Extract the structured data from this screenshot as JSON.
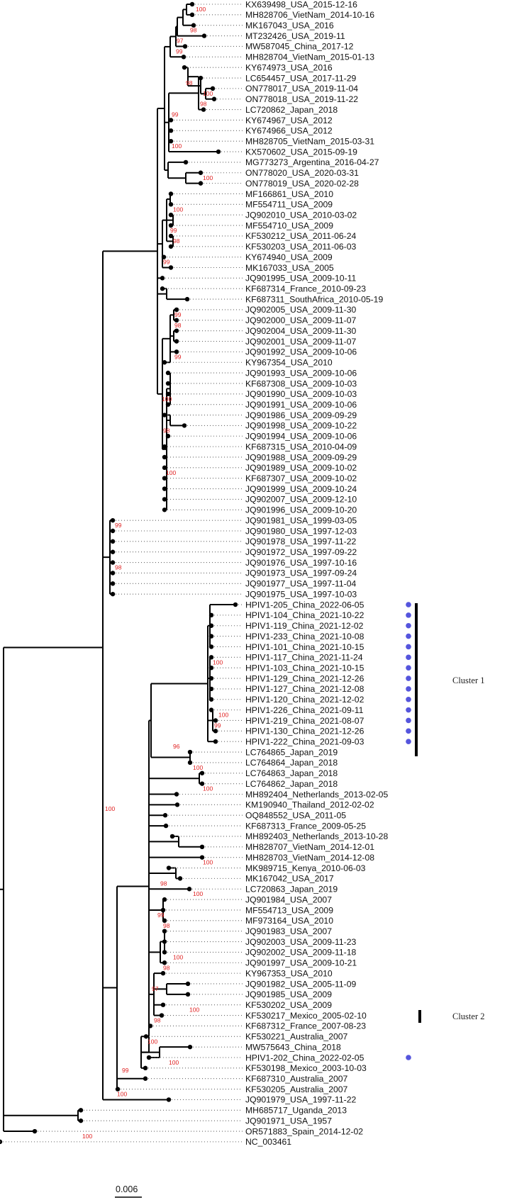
{
  "tree": {
    "taxa": [
      "KX639498_USA_2015-12-16",
      "MH828706_VietNam_2014-10-16",
      "MK167043_USA_2016",
      "MT232426_USA_2019-11",
      "MW587045_China_2017-12",
      "MH828704_VietNam_2015-01-13",
      "KY674973_USA_2016",
      "LC654457_USA_2017-11-29",
      "ON778017_USA_2019-11-04",
      "ON778018_USA_2019-11-22",
      "LC720862_Japan_2018",
      "KY674967_USA_2012",
      "KY674966_USA_2012",
      "MH828705_VietNam_2015-03-31",
      "KX570602_USA_2015-09-19",
      "MG773273_Argentina_2016-04-27",
      "ON778020_USA_2020-03-31",
      "ON778019_USA_2020-02-28",
      "MF166861_USA_2010",
      "MF554711_USA_2009",
      "JQ902010_USA_2010-03-02",
      "MF554710_USA_2009",
      "KF530212_USA_2011-06-24",
      "KF530203_USA_2011-06-03",
      "KY674940_USA_2009",
      "MK167033_USA_2005",
      "JQ901995_USA_2009-10-11",
      "KF687314_France_2010-09-23",
      "KF687311_SouthAfrica_2010-05-19",
      "JQ902005_USA_2009-11-30",
      "JQ902000_USA_2009-11-07",
      "JQ902004_USA_2009-11-30",
      "JQ902001_USA_2009-11-07",
      "JQ901992_USA_2009-10-06",
      "KY967354_USA_2010",
      "JQ901993_USA_2009-10-06",
      "KF687308_USA_2009-10-03",
      "JQ901990_USA_2009-10-03",
      "JQ901991_USA_2009-10-06",
      "JQ901986_USA_2009-09-29",
      "JQ901998_USA_2009-10-22",
      "JQ901994_USA_2009-10-06",
      "KF687315_USA_2010-04-09",
      "JQ901988_USA_2009-09-29",
      "JQ901989_USA_2009-10-02",
      "KF687307_USA_2009-10-02",
      "JQ901999_USA_2009-10-24",
      "JQ902007_USA_2009-12-10",
      "JQ901996_USA_2009-10-20",
      "JQ901981_USA_1999-03-05",
      "JQ901980_USA_1997-12-03",
      "JQ901978_USA_1997-11-22",
      "JQ901972_USA_1997-09-22",
      "JQ901976_USA_1997-10-16",
      "JQ901973_USA_1997-09-24",
      "JQ901977_USA_1997-11-04",
      "JQ901975_USA_1997-10-03",
      "HPIV1-205_China_2022-06-05",
      "HPIV1-104_China_2021-10-22",
      "HPIV1-119_China_2021-12-02",
      "HPIV1-233_China_2021-10-08",
      "HPIV1-101_China_2021-10-15",
      "HPIV1-117_China_2021-11-24",
      "HPIV1-103_China_2021-10-15",
      "HPIV1-129_China_2021-12-26",
      "HPIV1-127_China_2021-12-08",
      "HPIV1-120_China_2021-12-02",
      "HPIV1-226_China_2021-09-11",
      "HPIV1-219_China_2021-08-07",
      "HPIV1-130_China_2021-12-26",
      "HPIV1-222_China_2021-09-03",
      "LC764865_Japan_2019",
      "LC764864_Japan_2018",
      "LC764863_Japan_2018",
      "LC764862_Japan_2018",
      "MH892404_Netherlands_2013-02-05",
      "KM190940_Thailand_2012-02-02",
      "OQ848552_USA_2011-05",
      "KF687313_France_2009-05-25",
      "MH892403_Netherlands_2013-10-28",
      "MH828707_VietNam_2014-12-01",
      "MH828703_VietNam_2014-12-08",
      "MK989715_Kenya_2010-06-03",
      "MK167042_USA_2017",
      "LC720863_Japan_2019",
      "JQ901984_USA_2007",
      "MF554713_USA_2009",
      "MF973164_USA_2010",
      "JQ901983_USA_2007",
      "JQ902003_USA_2009-11-23",
      "JQ902002_USA_2009-11-18",
      "JQ901997_USA_2009-10-21",
      "KY967353_USA_2010",
      "JQ901982_USA_2005-11-09",
      "JQ901985_USA_2009",
      "KF530202_USA_2009",
      "KF530217_Mexico_2005-02-10",
      "KF687312_France_2007-08-23",
      "KF530221_Australia_2007",
      "MW575643_China_2018",
      "HPIV1-202_China_2022-02-05",
      "KF530198_Mexico_2003-10-03",
      "KF687310_Australia_2007",
      "KF530205_Australia_2007",
      "JQ901979_USA_1997-11-22",
      "MH685717_Uganda_2013",
      "JQ901971_USA_1957",
      "OR571883_Spain_2014-12-02",
      "NC_003461"
    ],
    "marked_taxa": [
      "HPIV1-205_China_2022-06-05",
      "HPIV1-104_China_2021-10-22",
      "HPIV1-119_China_2021-12-02",
      "HPIV1-233_China_2021-10-08",
      "HPIV1-101_China_2021-10-15",
      "HPIV1-117_China_2021-11-24",
      "HPIV1-103_China_2021-10-15",
      "HPIV1-129_China_2021-12-26",
      "HPIV1-127_China_2021-12-08",
      "HPIV1-120_China_2021-12-02",
      "HPIV1-226_China_2021-09-11",
      "HPIV1-219_China_2021-08-07",
      "HPIV1-130_China_2021-12-26",
      "HPIV1-222_China_2021-09-03",
      "HPIV1-202_China_2022-02-05"
    ],
    "bootstrap_labels": [
      {
        "value": "100",
        "after": "KX639498_USA_2015-12-16"
      },
      {
        "value": "98",
        "after": "MK167043_USA_2016"
      },
      {
        "value": "97",
        "after": "MT232426_USA_2019-11"
      },
      {
        "value": "99",
        "after": "MW587045_China_2017-12"
      },
      {
        "value": "98",
        "after": "LC654457_USA_2017-11-29"
      },
      {
        "value": "100",
        "after": "ON778017_USA_2019-11-04"
      },
      {
        "value": "98",
        "after": "ON778018_USA_2019-11-22"
      },
      {
        "value": "99",
        "after": "LC720862_Japan_2018"
      },
      {
        "value": "100",
        "after": "MH828705_VietNam_2015-03-31"
      },
      {
        "value": "100",
        "after": "ON778020_USA_2020-03-31"
      },
      {
        "value": "100",
        "after": "MF554711_USA_2009"
      },
      {
        "value": "99",
        "after": "MF554710_USA_2009"
      },
      {
        "value": "98",
        "after": "KF530212_USA_2011-06-24"
      },
      {
        "value": "99",
        "after": "KY674940_USA_2009"
      },
      {
        "value": "99",
        "after": "JQ902005_USA_2009-11-30"
      },
      {
        "value": "98",
        "after": "JQ902000_USA_2009-11-07"
      },
      {
        "value": "99",
        "after": "JQ901992_USA_2009-10-06"
      },
      {
        "value": "100",
        "after": "JQ901990_USA_2009-10-03"
      },
      {
        "value": "98",
        "after": "JQ901998_USA_2009-10-22"
      },
      {
        "value": "100",
        "after": "JQ901989_USA_2009-10-02"
      },
      {
        "value": "99",
        "after": "JQ901981_USA_1999-03-05"
      },
      {
        "value": "98",
        "after": "JQ901976_USA_1997-10-16"
      },
      {
        "value": "100",
        "after": "HPIV1-117_China_2021-11-24"
      },
      {
        "value": "100",
        "after": "HPIV1-226_China_2021-09-11"
      },
      {
        "value": "99",
        "after": "HPIV1-219_China_2021-08-07"
      },
      {
        "value": "96",
        "after": "HPIV1-222_China_2021-09-03"
      },
      {
        "value": "100",
        "after": "LC764864_Japan_2018"
      },
      {
        "value": "100",
        "after": "LC764862_Japan_2018"
      },
      {
        "value": "100",
        "after": "MH828703_VietNam_2014-12-08"
      },
      {
        "value": "98",
        "after": "MK167042_USA_2017"
      },
      {
        "value": "100",
        "after": "LC720863_Japan_2019"
      },
      {
        "value": "99",
        "after": "MF554713_USA_2009"
      },
      {
        "value": "98",
        "after": "MF973164_USA_2010"
      },
      {
        "value": "100",
        "after": "JQ902002_USA_2009-11-18"
      },
      {
        "value": "98",
        "after": "JQ901997_USA_2009-10-21"
      },
      {
        "value": "97",
        "after": "JQ901982_USA_2005-11-09"
      },
      {
        "value": "100",
        "after": "KF530202_USA_2009"
      },
      {
        "value": "98",
        "after": "KF530217_Mexico_2005-02-10"
      },
      {
        "value": "100",
        "after": "KF530221_Australia_2007"
      },
      {
        "value": "100",
        "after": "HPIV1-202_China_2022-02-05"
      },
      {
        "value": "99",
        "after": "KF530198_Mexico_2003-10-03"
      },
      {
        "value": "100",
        "after": "KF530205_Australia_2007"
      },
      {
        "value": "100",
        "after": "OR571883_Spain_2014-12-02"
      },
      {
        "value": "100",
        "after": "JQ901984_USA_2007"
      }
    ],
    "clusters": [
      {
        "label": "Cluster 1"
      },
      {
        "label": "Cluster 2"
      }
    ],
    "scale_bar": {
      "label": "0.006",
      "value": 0.006
    },
    "colors": {
      "branch": "#000000",
      "bootstrap": "#e02020",
      "marker": "#5555dd",
      "label": "#111111"
    }
  }
}
